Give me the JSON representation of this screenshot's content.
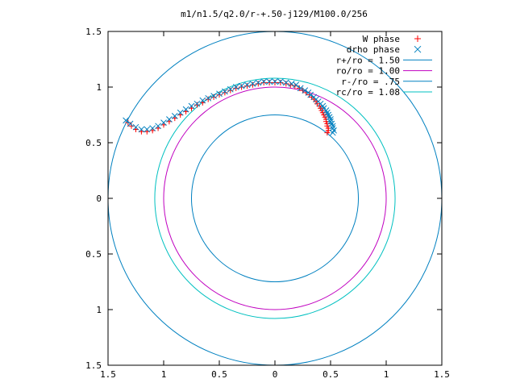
{
  "chart_data": {
    "type": "scatter",
    "title": "m1/n1.5/q2.0/r-+.50-j129/M100.0/256",
    "xlim": [
      -1.5,
      1.5
    ],
    "ylim": [
      -1.5,
      1.5
    ],
    "x_ticks": [
      {
        "value": -1.5,
        "label": "1.5"
      },
      {
        "value": -1.0,
        "label": "1"
      },
      {
        "value": -0.5,
        "label": "0.5"
      },
      {
        "value": 0.0,
        "label": "0"
      },
      {
        "value": 0.5,
        "label": "0.5"
      },
      {
        "value": 1.0,
        "label": "1"
      },
      {
        "value": 1.5,
        "label": "1.5"
      }
    ],
    "y_ticks": [
      {
        "value": 1.5,
        "label": "1.5"
      },
      {
        "value": 1.0,
        "label": "1"
      },
      {
        "value": 0.5,
        "label": "0.5"
      },
      {
        "value": 0.0,
        "label": "0"
      },
      {
        "value": -0.5,
        "label": "0.5"
      },
      {
        "value": -1.0,
        "label": "1"
      },
      {
        "value": -1.5,
        "label": "1.5"
      }
    ],
    "grid": false,
    "legend_position": "top-right",
    "legend": [
      {
        "label": "W phase",
        "marker": "plus",
        "color": "#ff0000"
      },
      {
        "label": "drho phase",
        "marker": "cross",
        "color": "#0080c0"
      },
      {
        "label": "r+/ro = 1.50",
        "marker": "line",
        "color": "#0080c0"
      },
      {
        "label": "ro/ro = 1.00",
        "marker": "line",
        "color": "#c000c0"
      },
      {
        "label": "r-/ro = .75",
        "marker": "line",
        "color": "#0080c0"
      },
      {
        "label": "rc/ro = 1.08",
        "marker": "line",
        "color": "#00c0c0"
      }
    ],
    "circles": [
      {
        "name": "r+/ro = 1.50",
        "r": 1.5,
        "color": "#0080c0"
      },
      {
        "name": "ro/ro = 1.00",
        "r": 1.0,
        "color": "#c000c0"
      },
      {
        "name": "r-/ro = .75",
        "r": 0.75,
        "color": "#0080c0"
      },
      {
        "name": "rc/ro = 1.08",
        "r": 1.08,
        "color": "#00c0c0"
      }
    ],
    "series": [
      {
        "name": "W phase",
        "color": "#ff0000",
        "marker": "plus",
        "points": [
          [
            0.47,
            0.59
          ],
          [
            0.48,
            0.61
          ],
          [
            0.48,
            0.63
          ],
          [
            0.47,
            0.65
          ],
          [
            0.47,
            0.67
          ],
          [
            0.46,
            0.69
          ],
          [
            0.46,
            0.71
          ],
          [
            0.45,
            0.73
          ],
          [
            0.44,
            0.75
          ],
          [
            0.43,
            0.77
          ],
          [
            0.42,
            0.79
          ],
          [
            0.41,
            0.81
          ],
          [
            0.4,
            0.83
          ],
          [
            0.38,
            0.85
          ],
          [
            0.37,
            0.87
          ],
          [
            0.35,
            0.89
          ],
          [
            0.33,
            0.91
          ],
          [
            0.31,
            0.93
          ],
          [
            0.28,
            0.95
          ],
          [
            0.25,
            0.97
          ],
          [
            0.22,
            0.99
          ],
          [
            0.18,
            1.01
          ],
          [
            0.14,
            1.02
          ],
          [
            0.1,
            1.03
          ],
          [
            0.05,
            1.04
          ],
          [
            0.0,
            1.04
          ],
          [
            -0.05,
            1.04
          ],
          [
            -0.1,
            1.04
          ],
          [
            -0.15,
            1.03
          ],
          [
            -0.2,
            1.02
          ],
          [
            -0.25,
            1.01
          ],
          [
            -0.3,
            1.0
          ],
          [
            -0.35,
            0.99
          ],
          [
            -0.4,
            0.97
          ],
          [
            -0.45,
            0.95
          ],
          [
            -0.5,
            0.93
          ],
          [
            -0.55,
            0.91
          ],
          [
            -0.6,
            0.89
          ],
          [
            -0.65,
            0.86
          ],
          [
            -0.7,
            0.84
          ],
          [
            -0.75,
            0.81
          ],
          [
            -0.8,
            0.78
          ],
          [
            -0.85,
            0.75
          ],
          [
            -0.9,
            0.72
          ],
          [
            -0.95,
            0.69
          ],
          [
            -1.0,
            0.66
          ],
          [
            -1.05,
            0.63
          ],
          [
            -1.1,
            0.61
          ],
          [
            -1.15,
            0.6
          ],
          [
            -1.2,
            0.6
          ],
          [
            -1.25,
            0.62
          ],
          [
            -1.29,
            0.65
          ],
          [
            -1.32,
            0.68
          ]
        ]
      },
      {
        "name": "drho phase",
        "color": "#0080c0",
        "marker": "cross",
        "points": [
          [
            0.52,
            0.59
          ],
          [
            0.53,
            0.61
          ],
          [
            0.52,
            0.63
          ],
          [
            0.52,
            0.65
          ],
          [
            0.51,
            0.67
          ],
          [
            0.5,
            0.69
          ],
          [
            0.5,
            0.71
          ],
          [
            0.49,
            0.73
          ],
          [
            0.48,
            0.75
          ],
          [
            0.47,
            0.77
          ],
          [
            0.46,
            0.79
          ],
          [
            0.44,
            0.81
          ],
          [
            0.43,
            0.83
          ],
          [
            0.41,
            0.85
          ],
          [
            0.39,
            0.87
          ],
          [
            0.37,
            0.89
          ],
          [
            0.35,
            0.91
          ],
          [
            0.32,
            0.93
          ],
          [
            0.3,
            0.95
          ],
          [
            0.27,
            0.97
          ],
          [
            0.23,
            0.99
          ],
          [
            0.19,
            1.02
          ],
          [
            0.15,
            1.03
          ],
          [
            0.1,
            1.04
          ],
          [
            0.05,
            1.05
          ],
          [
            0.0,
            1.05
          ],
          [
            -0.05,
            1.05
          ],
          [
            -0.1,
            1.05
          ],
          [
            -0.15,
            1.04
          ],
          [
            -0.2,
            1.03
          ],
          [
            -0.25,
            1.02
          ],
          [
            -0.3,
            1.01
          ],
          [
            -0.35,
            1.0
          ],
          [
            -0.4,
            0.98
          ],
          [
            -0.45,
            0.96
          ],
          [
            -0.5,
            0.94
          ],
          [
            -0.55,
            0.92
          ],
          [
            -0.6,
            0.9
          ],
          [
            -0.65,
            0.88
          ],
          [
            -0.7,
            0.85
          ],
          [
            -0.75,
            0.83
          ],
          [
            -0.8,
            0.8
          ],
          [
            -0.85,
            0.77
          ],
          [
            -0.9,
            0.74
          ],
          [
            -0.95,
            0.71
          ],
          [
            -1.0,
            0.68
          ],
          [
            -1.05,
            0.65
          ],
          [
            -1.1,
            0.63
          ],
          [
            -1.15,
            0.62
          ],
          [
            -1.2,
            0.62
          ],
          [
            -1.25,
            0.64
          ],
          [
            -1.3,
            0.67
          ],
          [
            -1.34,
            0.7
          ]
        ]
      }
    ]
  }
}
